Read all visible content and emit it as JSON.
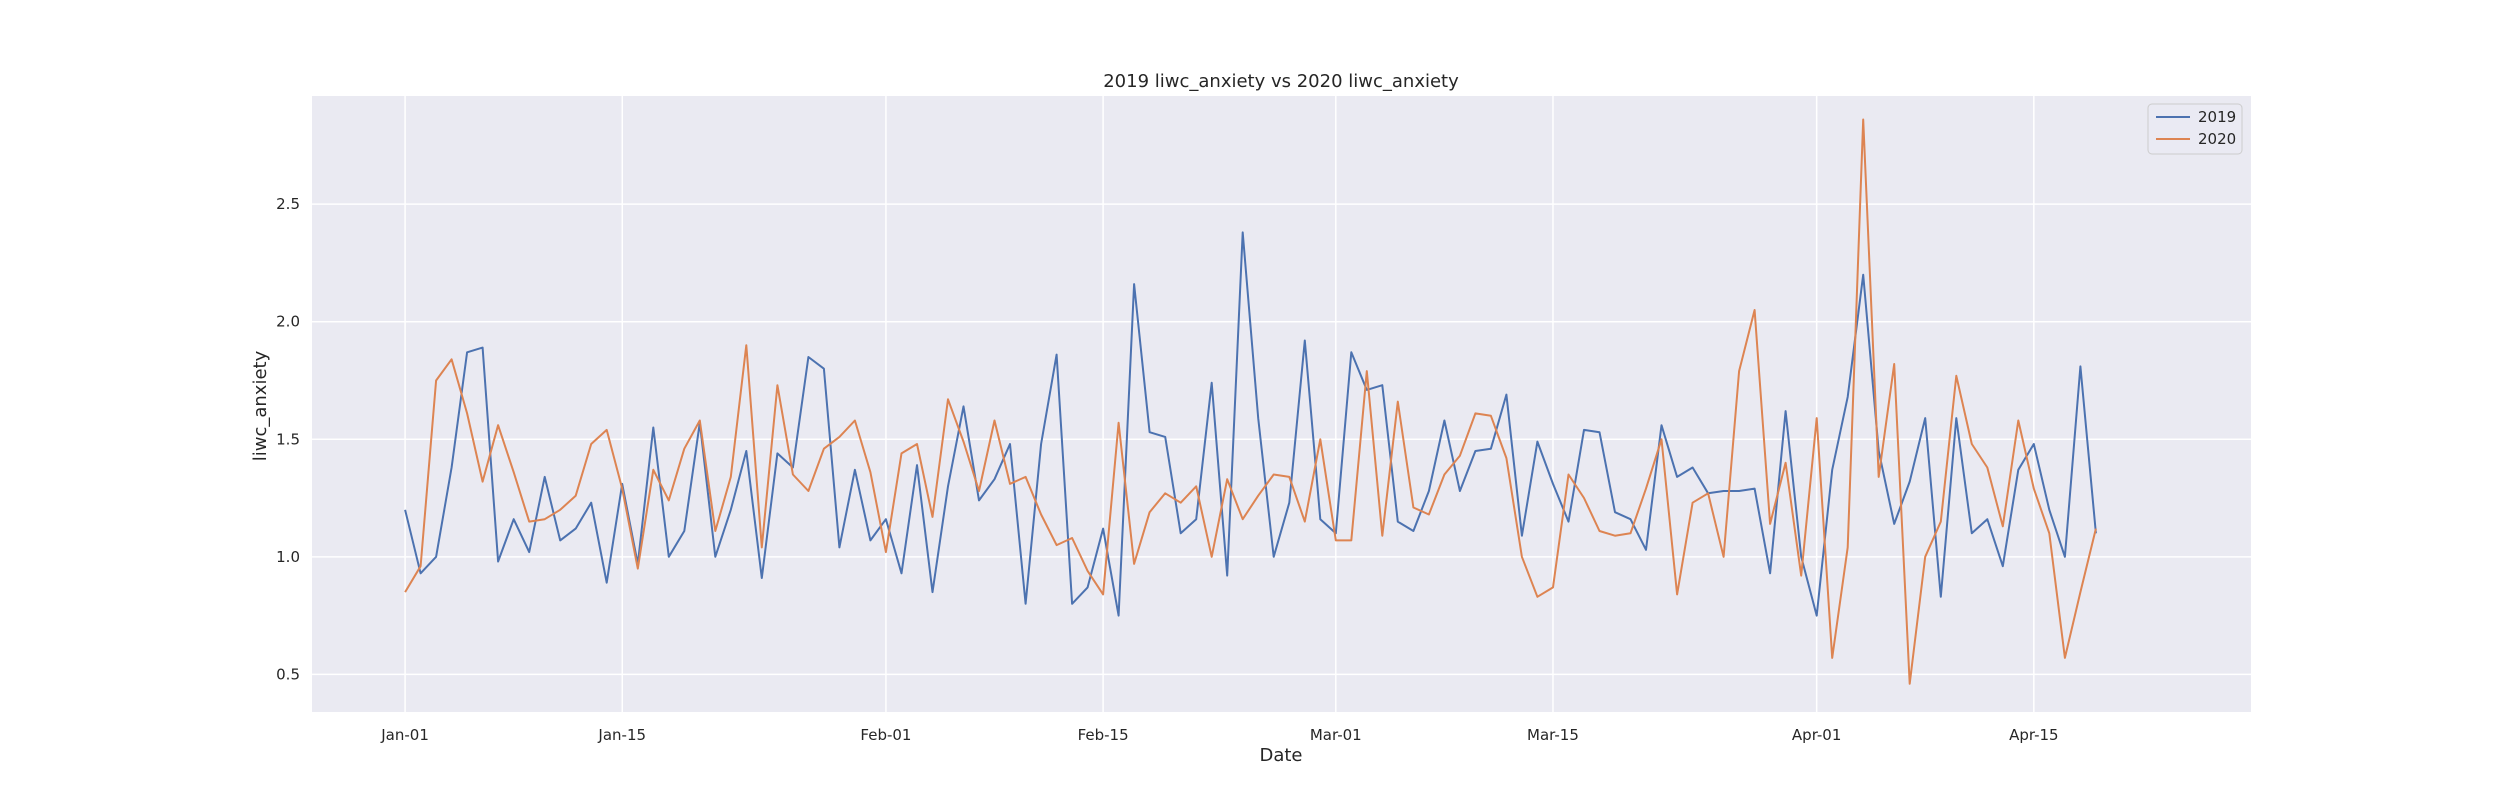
{
  "chart_data": {
    "type": "line",
    "title": "2019 liwc_anxiety vs 2020 liwc_anxiety",
    "xlabel": "Date",
    "ylabel": "liwc_anxiety",
    "x_start": "Jan-01",
    "x_ticks": [
      "Jan-01",
      "Jan-15",
      "Feb-01",
      "Feb-15",
      "Mar-01",
      "Mar-15",
      "Apr-01",
      "Apr-15"
    ],
    "y_ticks": [
      "0.5",
      "1.0",
      "1.5",
      "2.0",
      "2.5"
    ],
    "xlim": [
      "Dec-26",
      "Apr-29"
    ],
    "ylim": [
      0.34,
      2.96
    ],
    "grid": true,
    "legend_position": "top-right",
    "series": [
      {
        "name": "2019",
        "color": "#4c72b0",
        "values": [
          1.2,
          0.93,
          1.0,
          1.38,
          1.87,
          1.89,
          0.98,
          1.16,
          1.02,
          1.34,
          1.07,
          1.12,
          1.23,
          0.89,
          1.31,
          0.97,
          1.55,
          1.0,
          1.11,
          1.57,
          1.0,
          1.2,
          1.45,
          0.91,
          1.44,
          1.38,
          1.85,
          1.8,
          1.04,
          1.37,
          1.07,
          1.16,
          0.93,
          1.39,
          0.85,
          1.3,
          1.64,
          1.24,
          1.33,
          1.48,
          0.8,
          1.48,
          1.86,
          0.8,
          0.87,
          1.12,
          0.75,
          2.16,
          1.53,
          1.51,
          1.1,
          1.16,
          1.74,
          0.92,
          2.38,
          1.59,
          1.0,
          1.23,
          1.92,
          1.16,
          1.1,
          1.87,
          1.71,
          1.73,
          1.15,
          1.11,
          1.28,
          1.58,
          1.28,
          1.45,
          1.46,
          1.69,
          1.09,
          1.49,
          1.31,
          1.15,
          1.54,
          1.53,
          1.19,
          1.16,
          1.03,
          1.56,
          1.34,
          1.38,
          1.27,
          1.28,
          1.28,
          1.29,
          0.93,
          1.62,
          1.0,
          0.75,
          1.37,
          1.68,
          2.2,
          1.45,
          1.14,
          1.32,
          1.59,
          0.83,
          1.59,
          1.1,
          1.16,
          0.96,
          1.37,
          1.48,
          1.2,
          1.0,
          1.81,
          1.1
        ]
      },
      {
        "name": "2020",
        "color": "#dd8452",
        "values": [
          0.85,
          0.96,
          1.75,
          1.84,
          1.61,
          1.32,
          1.56,
          1.36,
          1.15,
          1.16,
          1.2,
          1.26,
          1.48,
          1.54,
          1.29,
          0.95,
          1.37,
          1.24,
          1.46,
          1.58,
          1.11,
          1.34,
          1.9,
          1.04,
          1.73,
          1.35,
          1.28,
          1.46,
          1.51,
          1.58,
          1.36,
          1.02,
          1.44,
          1.48,
          1.17,
          1.67,
          1.49,
          1.28,
          1.58,
          1.31,
          1.34,
          1.18,
          1.05,
          1.08,
          0.94,
          0.84,
          1.57,
          0.97,
          1.19,
          1.27,
          1.23,
          1.3,
          1.0,
          1.33,
          1.16,
          1.26,
          1.35,
          1.34,
          1.15,
          1.5,
          1.07,
          1.07,
          1.79,
          1.09,
          1.66,
          1.21,
          1.18,
          1.35,
          1.43,
          1.61,
          1.6,
          1.42,
          1.0,
          0.83,
          0.87,
          1.35,
          1.25,
          1.11,
          1.09,
          1.1,
          1.29,
          1.5,
          0.84,
          1.23,
          1.27,
          1.0,
          1.79,
          2.05,
          1.14,
          1.4,
          0.92,
          1.59,
          0.57,
          1.04,
          2.86,
          1.34,
          1.82,
          0.46,
          1.0,
          1.15,
          1.77,
          1.48,
          1.38,
          1.13,
          1.58,
          1.29,
          1.1,
          0.57,
          0.85,
          1.12
        ]
      }
    ]
  }
}
